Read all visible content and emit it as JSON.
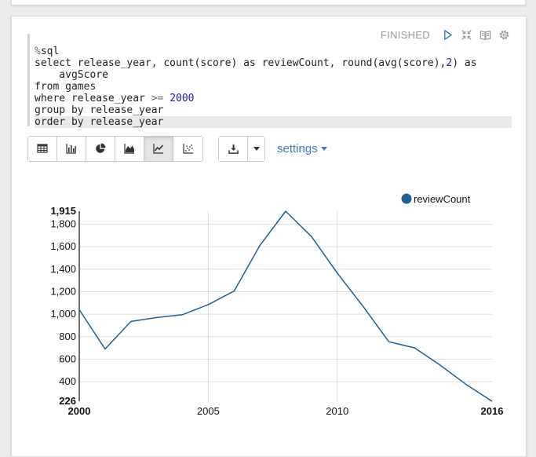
{
  "paragraph": {
    "status": "FINISHED",
    "header_icons": [
      "play-icon",
      "collapse-icon",
      "book-icon",
      "gear-icon"
    ]
  },
  "editor": {
    "lines": [
      [
        {
          "t": "%",
          "c": "kw-op"
        },
        {
          "t": "sql"
        }
      ],
      [
        {
          "t": "select release_year, count(score) as reviewCount, round(avg(score),"
        },
        {
          "t": "2",
          "c": "num"
        },
        {
          "t": ") as"
        }
      ],
      [
        {
          "t": "    avgScore"
        }
      ],
      [
        {
          "t": "from games"
        }
      ],
      [
        {
          "t": "where release_year "
        },
        {
          "t": ">=",
          "c": "kw-op"
        },
        {
          "t": " "
        },
        {
          "t": "2000",
          "c": "num"
        }
      ],
      [
        {
          "t": "group by release_year"
        }
      ],
      [
        {
          "t": "order by release_year"
        }
      ]
    ]
  },
  "toolbar": {
    "viz_buttons": [
      {
        "name": "table-icon",
        "active": false
      },
      {
        "name": "bar-chart-icon",
        "active": false
      },
      {
        "name": "pie-chart-icon",
        "active": false
      },
      {
        "name": "area-chart-icon",
        "active": false
      },
      {
        "name": "line-chart-icon",
        "active": true
      },
      {
        "name": "scatter-chart-icon",
        "active": false
      }
    ],
    "download_icon": "download-icon",
    "settings_label": "settings"
  },
  "chart_data": {
    "type": "line",
    "title": "",
    "xlabel": "",
    "ylabel": "",
    "x": [
      2000,
      2001,
      2002,
      2003,
      2004,
      2005,
      2006,
      2007,
      2008,
      2009,
      2010,
      2011,
      2012,
      2013,
      2014,
      2015,
      2016
    ],
    "series": [
      {
        "name": "reviewCount",
        "color": "#1f5f91",
        "values": [
          1040,
          690,
          935,
          970,
          995,
          1085,
          1205,
          1610,
          1915,
          1690,
          1365,
          1070,
          755,
          700,
          545,
          375,
          226
        ]
      }
    ],
    "xlim": [
      2000,
      2016
    ],
    "ylim": [
      226,
      1915
    ],
    "y_ticks": [
      226,
      400,
      600,
      800,
      1000,
      1200,
      1400,
      1600,
      1800,
      1915
    ],
    "y_tick_labels": [
      "226",
      "400",
      "600",
      "800",
      "1,000",
      "1,200",
      "1,400",
      "1,600",
      "1,800",
      "1,915"
    ],
    "y_tick_bold": [
      true,
      false,
      false,
      false,
      false,
      false,
      false,
      false,
      false,
      true
    ],
    "x_ticks": [
      2000,
      2005,
      2010,
      2016
    ],
    "x_tick_labels": [
      "2000",
      "2005",
      "2010",
      "2016"
    ],
    "x_tick_bold": [
      true,
      false,
      false,
      true
    ],
    "grid": true,
    "legend": "top-right"
  }
}
